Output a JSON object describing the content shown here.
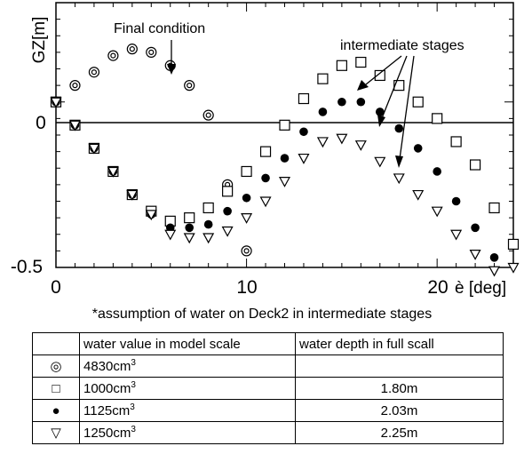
{
  "chart_data": {
    "type": "scatter",
    "xlabel": "è [deg]",
    "ylabel": "GZ[m]",
    "x_ticks": [
      "0",
      "10",
      "20"
    ],
    "y_ticks": [
      "0",
      "-0.5"
    ],
    "xlim": [
      0,
      24
    ],
    "ylim": [
      -0.5,
      0.3
    ],
    "annotations": [
      "Final condition",
      "intermediate stages"
    ],
    "series": [
      {
        "marker": "double-circle",
        "x": [
          0,
          1,
          2,
          3,
          4,
          5,
          6,
          7,
          8,
          9,
          10
        ],
        "y": [
          0,
          0.05,
          0.09,
          0.14,
          0.16,
          0.15,
          0.11,
          0.05,
          -0.04,
          -0.25,
          -0.45
        ]
      },
      {
        "marker": "open-square",
        "x": [
          0,
          1,
          2,
          3,
          4,
          5,
          6,
          7,
          8,
          9,
          10,
          11,
          12,
          13,
          14,
          15,
          16,
          17,
          18,
          19,
          20,
          21,
          22,
          23,
          24
        ],
        "y": [
          0,
          -0.07,
          -0.14,
          -0.21,
          -0.28,
          -0.33,
          -0.36,
          -0.35,
          -0.32,
          -0.27,
          -0.21,
          -0.15,
          -0.07,
          0.01,
          0.07,
          0.11,
          0.12,
          0.08,
          0.05,
          0.0,
          -0.05,
          -0.12,
          -0.19,
          -0.32,
          -0.43
        ]
      },
      {
        "marker": "filled-circle",
        "x": [
          0,
          1,
          2,
          3,
          4,
          5,
          6,
          7,
          8,
          9,
          10,
          11,
          12,
          13,
          14,
          15,
          16,
          17,
          18,
          19,
          20,
          21,
          22,
          23
        ],
        "y": [
          0,
          -0.07,
          -0.14,
          -0.21,
          -0.28,
          -0.34,
          -0.38,
          -0.38,
          -0.37,
          -0.33,
          -0.29,
          -0.23,
          -0.17,
          -0.09,
          -0.03,
          0.0,
          0.0,
          -0.03,
          -0.08,
          -0.14,
          -0.21,
          -0.3,
          -0.38,
          -0.47
        ]
      },
      {
        "marker": "open-triangle-down",
        "x": [
          0,
          1,
          2,
          3,
          4,
          5,
          6,
          7,
          8,
          9,
          10,
          11,
          12,
          13,
          14,
          15,
          16,
          17,
          18,
          19,
          20,
          21,
          22,
          23,
          24
        ],
        "y": [
          0,
          -0.07,
          -0.14,
          -0.21,
          -0.28,
          -0.34,
          -0.4,
          -0.41,
          -0.41,
          -0.39,
          -0.35,
          -0.3,
          -0.24,
          -0.17,
          -0.12,
          -0.11,
          -0.13,
          -0.18,
          -0.23,
          -0.28,
          -0.33,
          -0.4,
          -0.46,
          -0.51,
          -0.5
        ]
      }
    ]
  },
  "footnote": "*assumption of water on Deck2 in intermediate stages",
  "legend_table": {
    "headers": [
      "",
      "water value in model scale",
      "water depth in full scall"
    ],
    "rows": [
      {
        "symbol": "◎",
        "value": "4830cm",
        "exp": "3",
        "depth": ""
      },
      {
        "symbol": "□",
        "value": "1000cm",
        "exp": "3",
        "depth": "1.80m"
      },
      {
        "symbol": "●",
        "value": "1125cm",
        "exp": "3",
        "depth": "2.03m"
      },
      {
        "symbol": "▽",
        "value": "1250cm",
        "exp": "3",
        "depth": "2.25m"
      }
    ]
  }
}
